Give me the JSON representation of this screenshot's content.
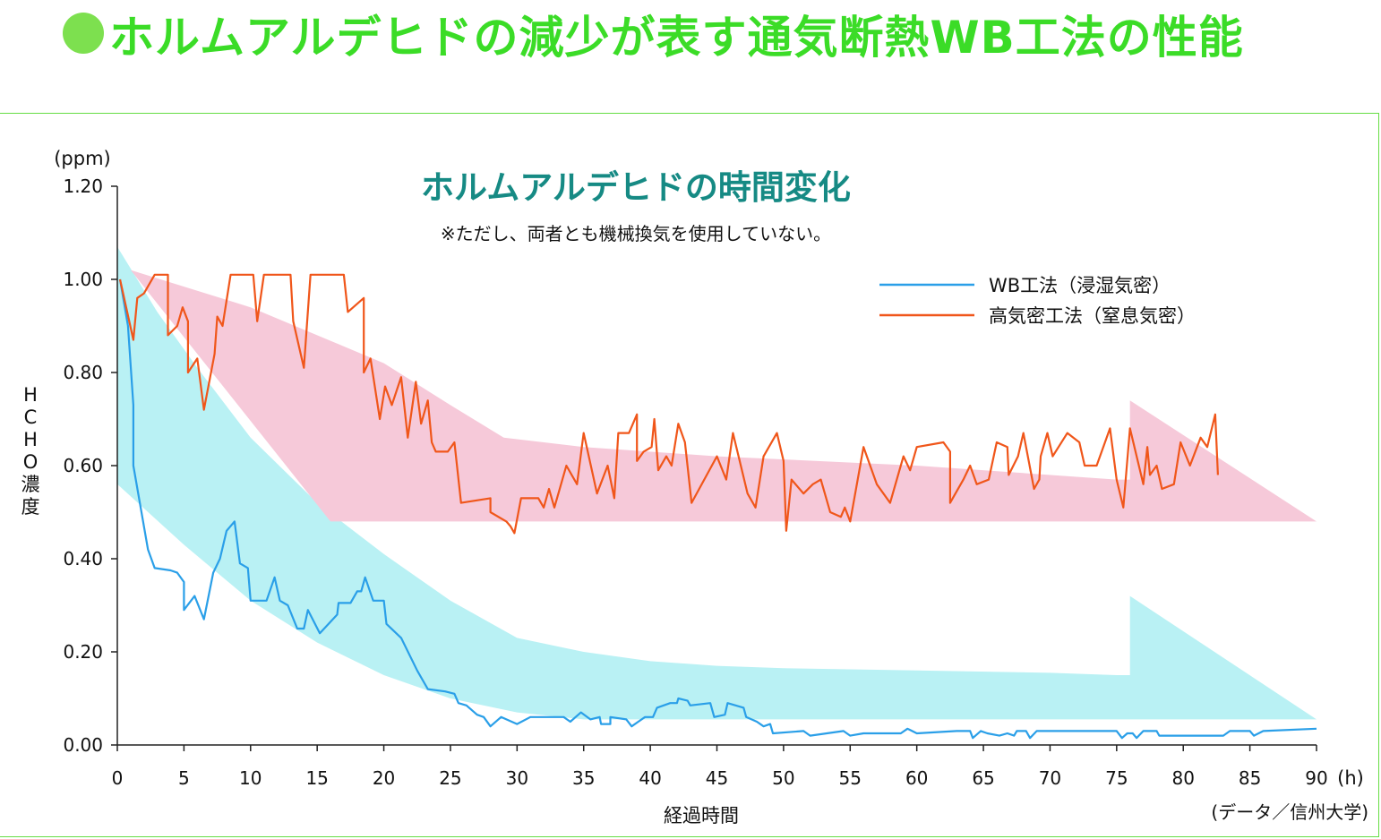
{
  "page": {
    "title": "ホルムアルデヒドの減少が表す通気断熱WB工法の性能"
  },
  "chart_data": {
    "type": "line",
    "title": "ホルムアルデヒドの時間変化",
    "note": "※ただし、両者とも機械換気を使用していない。",
    "ylabel": "HCHO濃度",
    "yunit": "(ppm)",
    "xlabel": "経過時間",
    "xunit": "(h)",
    "source": "(データ／信州大学)",
    "xlim": [
      0,
      90
    ],
    "ylim": [
      0,
      1.2
    ],
    "xticks": [
      "0",
      "5",
      "10",
      "15",
      "20",
      "25",
      "30",
      "35",
      "40",
      "45",
      "50",
      "55",
      "60",
      "65",
      "70",
      "75",
      "80",
      "85",
      "90"
    ],
    "yticks": [
      "0.00",
      "0.20",
      "0.40",
      "0.60",
      "0.80",
      "1.00",
      "1.20"
    ],
    "grid": false,
    "legend_position": "top-right",
    "colors": {
      "page_title": "#3bdc27",
      "chart_title": "#168a84",
      "wb_line": "#2a9fe8",
      "airtight_line": "#f0561a",
      "wb_band": "#b9f1f4",
      "airtight_band": "#f6c9d9"
    },
    "bands": [
      {
        "name": "wb-range",
        "upper": [
          [
            0,
            1.07
          ],
          [
            3,
            0.93
          ],
          [
            6,
            0.81
          ],
          [
            10,
            0.66
          ],
          [
            15,
            0.52
          ],
          [
            20,
            0.41
          ],
          [
            25,
            0.31
          ],
          [
            30,
            0.23
          ],
          [
            35,
            0.2
          ],
          [
            40,
            0.18
          ],
          [
            45,
            0.17
          ],
          [
            50,
            0.165
          ],
          [
            60,
            0.16
          ],
          [
            70,
            0.155
          ],
          [
            75,
            0.15
          ],
          [
            76,
            0.15
          ],
          [
            76,
            0.32
          ],
          [
            90,
            0.055
          ]
        ],
        "lower": [
          [
            0,
            0.56
          ],
          [
            5,
            0.43
          ],
          [
            10,
            0.31
          ],
          [
            15,
            0.22
          ],
          [
            20,
            0.15
          ],
          [
            25,
            0.1
          ],
          [
            30,
            0.07
          ],
          [
            35,
            0.055
          ],
          [
            90,
            0.055
          ]
        ]
      },
      {
        "name": "airtight-range",
        "upper": [
          [
            1,
            1.02
          ],
          [
            10,
            0.94
          ],
          [
            20,
            0.82
          ],
          [
            25,
            0.73
          ],
          [
            29,
            0.66
          ],
          [
            35,
            0.64
          ],
          [
            45,
            0.62
          ],
          [
            60,
            0.6
          ],
          [
            75,
            0.57
          ],
          [
            76,
            0.57
          ],
          [
            76,
            0.74
          ],
          [
            90,
            0.48
          ]
        ],
        "lower": [
          [
            16,
            0.48
          ],
          [
            90,
            0.48
          ]
        ]
      }
    ],
    "series": [
      {
        "name": "WB工法（浸湿気密）",
        "points": [
          [
            0.2,
            1.0
          ],
          [
            0.8,
            0.9
          ],
          [
            1.2,
            0.73
          ],
          [
            1.2,
            0.6
          ],
          [
            2.3,
            0.42
          ],
          [
            2.8,
            0.38
          ],
          [
            4.0,
            0.375
          ],
          [
            4.5,
            0.37
          ],
          [
            5.0,
            0.35
          ],
          [
            5.0,
            0.29
          ],
          [
            5.8,
            0.32
          ],
          [
            6.5,
            0.27
          ],
          [
            7.2,
            0.37
          ],
          [
            7.7,
            0.4
          ],
          [
            8.2,
            0.46
          ],
          [
            8.8,
            0.48
          ],
          [
            9.2,
            0.39
          ],
          [
            9.8,
            0.38
          ],
          [
            10.0,
            0.31
          ],
          [
            11.2,
            0.31
          ],
          [
            11.8,
            0.36
          ],
          [
            12.2,
            0.31
          ],
          [
            12.8,
            0.3
          ],
          [
            13.5,
            0.25
          ],
          [
            14.0,
            0.25
          ],
          [
            14.3,
            0.29
          ],
          [
            15.2,
            0.24
          ],
          [
            16.5,
            0.28
          ],
          [
            16.6,
            0.305
          ],
          [
            17.5,
            0.305
          ],
          [
            18.0,
            0.33
          ],
          [
            18.3,
            0.33
          ],
          [
            18.6,
            0.36
          ],
          [
            19.2,
            0.31
          ],
          [
            20.0,
            0.31
          ],
          [
            20.2,
            0.26
          ],
          [
            21.3,
            0.23
          ],
          [
            22.5,
            0.16
          ],
          [
            23.3,
            0.12
          ],
          [
            24.6,
            0.115
          ],
          [
            25.3,
            0.11
          ],
          [
            25.6,
            0.09
          ],
          [
            26.2,
            0.085
          ],
          [
            27.0,
            0.065
          ],
          [
            27.5,
            0.06
          ],
          [
            28.0,
            0.04
          ],
          [
            28.8,
            0.06
          ],
          [
            30.0,
            0.045
          ],
          [
            31.0,
            0.06
          ],
          [
            32.5,
            0.06
          ],
          [
            33.5,
            0.06
          ],
          [
            34.0,
            0.05
          ],
          [
            34.8,
            0.07
          ],
          [
            35.5,
            0.055
          ],
          [
            36.2,
            0.06
          ],
          [
            36.3,
            0.045
          ],
          [
            37.0,
            0.045
          ],
          [
            37.0,
            0.06
          ],
          [
            38.2,
            0.055
          ],
          [
            38.6,
            0.04
          ],
          [
            39.1,
            0.05
          ],
          [
            39.6,
            0.06
          ],
          [
            40.2,
            0.06
          ],
          [
            40.5,
            0.08
          ],
          [
            41.5,
            0.09
          ],
          [
            42.0,
            0.09
          ],
          [
            42.1,
            0.1
          ],
          [
            42.8,
            0.095
          ],
          [
            43.0,
            0.085
          ],
          [
            44.5,
            0.09
          ],
          [
            44.8,
            0.06
          ],
          [
            45.6,
            0.065
          ],
          [
            45.8,
            0.09
          ],
          [
            47.0,
            0.08
          ],
          [
            47.2,
            0.06
          ],
          [
            48.0,
            0.05
          ],
          [
            48.5,
            0.04
          ],
          [
            49.0,
            0.045
          ],
          [
            49.2,
            0.025
          ],
          [
            51.5,
            0.03
          ],
          [
            52.0,
            0.02
          ],
          [
            54.5,
            0.03
          ],
          [
            55.0,
            0.02
          ],
          [
            56.0,
            0.025
          ],
          [
            58.8,
            0.025
          ],
          [
            59.3,
            0.035
          ],
          [
            60.0,
            0.025
          ],
          [
            63.0,
            0.03
          ],
          [
            64.0,
            0.03
          ],
          [
            64.2,
            0.015
          ],
          [
            64.8,
            0.03
          ],
          [
            65.3,
            0.025
          ],
          [
            66.2,
            0.02
          ],
          [
            66.8,
            0.025
          ],
          [
            67.3,
            0.02
          ],
          [
            67.5,
            0.03
          ],
          [
            68.2,
            0.03
          ],
          [
            68.5,
            0.015
          ],
          [
            69.0,
            0.03
          ],
          [
            75.0,
            0.03
          ],
          [
            75.4,
            0.015
          ],
          [
            75.8,
            0.025
          ],
          [
            76.2,
            0.025
          ],
          [
            76.5,
            0.015
          ],
          [
            77.0,
            0.03
          ],
          [
            78.0,
            0.03
          ],
          [
            78.2,
            0.02
          ],
          [
            79.0,
            0.02
          ],
          [
            83.0,
            0.02
          ],
          [
            83.5,
            0.03
          ],
          [
            85.0,
            0.03
          ],
          [
            85.3,
            0.02
          ],
          [
            86.0,
            0.03
          ],
          [
            90.0,
            0.035
          ]
        ]
      },
      {
        "name": "高気密工法（窒息気密）",
        "points": [
          [
            0.2,
            1.0
          ],
          [
            1.2,
            0.87
          ],
          [
            1.5,
            0.96
          ],
          [
            2.0,
            0.97
          ],
          [
            2.8,
            1.01
          ],
          [
            3.8,
            1.01
          ],
          [
            3.8,
            0.88
          ],
          [
            4.5,
            0.9
          ],
          [
            4.9,
            0.94
          ],
          [
            5.3,
            0.91
          ],
          [
            5.3,
            0.8
          ],
          [
            6.0,
            0.83
          ],
          [
            6.5,
            0.72
          ],
          [
            7.3,
            0.84
          ],
          [
            7.5,
            0.92
          ],
          [
            7.9,
            0.9
          ],
          [
            8.5,
            1.01
          ],
          [
            10.2,
            1.01
          ],
          [
            10.5,
            0.91
          ],
          [
            11.0,
            1.01
          ],
          [
            13.0,
            1.01
          ],
          [
            13.2,
            0.91
          ],
          [
            14.0,
            0.81
          ],
          [
            14.5,
            1.01
          ],
          [
            17.0,
            1.01
          ],
          [
            17.3,
            0.93
          ],
          [
            18.5,
            0.96
          ],
          [
            18.5,
            0.8
          ],
          [
            19.0,
            0.83
          ],
          [
            19.7,
            0.7
          ],
          [
            20.1,
            0.77
          ],
          [
            20.6,
            0.73
          ],
          [
            21.3,
            0.79
          ],
          [
            21.8,
            0.66
          ],
          [
            22.4,
            0.78
          ],
          [
            22.8,
            0.69
          ],
          [
            23.3,
            0.74
          ],
          [
            23.6,
            0.65
          ],
          [
            23.9,
            0.63
          ],
          [
            24.8,
            0.63
          ],
          [
            25.3,
            0.65
          ],
          [
            25.8,
            0.52
          ],
          [
            28.0,
            0.53
          ],
          [
            28.0,
            0.5
          ],
          [
            29.2,
            0.48
          ],
          [
            29.5,
            0.47
          ],
          [
            29.8,
            0.455
          ],
          [
            30.3,
            0.53
          ],
          [
            31.6,
            0.53
          ],
          [
            32.0,
            0.51
          ],
          [
            32.4,
            0.55
          ],
          [
            32.8,
            0.51
          ],
          [
            33.7,
            0.6
          ],
          [
            34.5,
            0.56
          ],
          [
            35.0,
            0.67
          ],
          [
            36.0,
            0.54
          ],
          [
            36.8,
            0.6
          ],
          [
            37.3,
            0.53
          ],
          [
            37.6,
            0.67
          ],
          [
            38.4,
            0.67
          ],
          [
            39.0,
            0.71
          ],
          [
            39.0,
            0.61
          ],
          [
            39.5,
            0.63
          ],
          [
            40.1,
            0.64
          ],
          [
            40.3,
            0.7
          ],
          [
            40.6,
            0.59
          ],
          [
            41.2,
            0.62
          ],
          [
            41.6,
            0.6
          ],
          [
            42.1,
            0.69
          ],
          [
            42.6,
            0.65
          ],
          [
            43.1,
            0.52
          ],
          [
            45.0,
            0.62
          ],
          [
            45.7,
            0.57
          ],
          [
            46.2,
            0.67
          ],
          [
            47.3,
            0.54
          ],
          [
            47.9,
            0.51
          ],
          [
            48.5,
            0.62
          ],
          [
            49.5,
            0.67
          ],
          [
            50.0,
            0.61
          ],
          [
            50.2,
            0.46
          ],
          [
            50.6,
            0.57
          ],
          [
            51.5,
            0.54
          ],
          [
            52.2,
            0.56
          ],
          [
            52.8,
            0.57
          ],
          [
            53.5,
            0.5
          ],
          [
            54.3,
            0.49
          ],
          [
            54.6,
            0.51
          ],
          [
            55.0,
            0.48
          ],
          [
            56.0,
            0.64
          ],
          [
            56.5,
            0.6
          ],
          [
            57.0,
            0.56
          ],
          [
            58.0,
            0.52
          ],
          [
            59.0,
            0.62
          ],
          [
            59.5,
            0.59
          ],
          [
            60.0,
            0.64
          ],
          [
            62.0,
            0.65
          ],
          [
            62.5,
            0.63
          ],
          [
            62.5,
            0.52
          ],
          [
            63.5,
            0.57
          ],
          [
            64.0,
            0.6
          ],
          [
            64.5,
            0.56
          ],
          [
            65.4,
            0.57
          ],
          [
            66.0,
            0.65
          ],
          [
            66.8,
            0.64
          ],
          [
            66.9,
            0.58
          ],
          [
            67.6,
            0.62
          ],
          [
            68.0,
            0.67
          ],
          [
            68.8,
            0.55
          ],
          [
            69.2,
            0.57
          ],
          [
            69.3,
            0.62
          ],
          [
            69.8,
            0.67
          ],
          [
            70.2,
            0.62
          ],
          [
            71.3,
            0.67
          ],
          [
            72.2,
            0.65
          ],
          [
            72.6,
            0.6
          ],
          [
            73.5,
            0.6
          ],
          [
            74.5,
            0.68
          ],
          [
            75.0,
            0.57
          ],
          [
            75.5,
            0.51
          ],
          [
            76.0,
            0.68
          ],
          [
            77.0,
            0.56
          ],
          [
            77.3,
            0.64
          ],
          [
            77.5,
            0.58
          ],
          [
            78.0,
            0.6
          ],
          [
            78.4,
            0.55
          ],
          [
            79.3,
            0.56
          ],
          [
            79.8,
            0.65
          ],
          [
            80.5,
            0.6
          ],
          [
            81.3,
            0.66
          ],
          [
            81.8,
            0.64
          ],
          [
            82.4,
            0.71
          ],
          [
            82.6,
            0.58
          ]
        ]
      }
    ]
  }
}
